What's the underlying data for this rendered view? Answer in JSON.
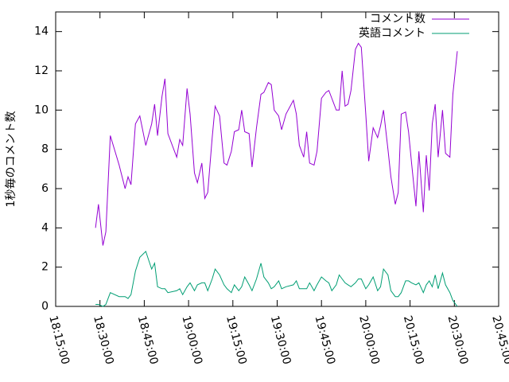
{
  "chart_data": {
    "type": "line",
    "y_label": "1秒毎のコメント数",
    "x": [
      "18:28:30",
      "18:29:30",
      "18:31:00",
      "18:32:00",
      "18:33:30",
      "18:36:30",
      "18:38:30",
      "18:39:30",
      "18:40:30",
      "18:42:00",
      "18:43:30",
      "18:45:30",
      "18:47:30",
      "18:48:30",
      "18:49:30",
      "18:51:00",
      "18:52:00",
      "18:53:00",
      "18:56:00",
      "18:57:00",
      "18:58:00",
      "18:59:30",
      "19:00:30",
      "19:02:00",
      "19:03:00",
      "19:04:30",
      "19:05:30",
      "19:06:30",
      "19:08:00",
      "19:09:00",
      "19:10:30",
      "19:12:00",
      "19:13:00",
      "19:14:30",
      "19:15:30",
      "19:17:00",
      "19:18:00",
      "19:19:00",
      "19:20:30",
      "19:21:30",
      "19:23:00",
      "19:24:30",
      "19:25:30",
      "19:27:00",
      "19:28:00",
      "19:29:00",
      "19:30:30",
      "19:31:30",
      "19:33:00",
      "19:35:30",
      "19:36:30",
      "19:37:30",
      "19:39:00",
      "19:40:00",
      "19:41:00",
      "19:42:30",
      "19:43:30",
      "19:45:00",
      "19:46:30",
      "19:47:30",
      "19:48:30",
      "19:50:00",
      "19:51:00",
      "19:52:00",
      "19:53:00",
      "19:54:00",
      "19:55:00",
      "19:56:30",
      "19:57:30",
      "19:58:30",
      "20:00:00",
      "20:01:00",
      "20:02:30",
      "20:04:00",
      "20:05:00",
      "20:06:00",
      "20:07:30",
      "20:08:30",
      "20:10:00",
      "20:11:00",
      "20:12:00",
      "20:13:30",
      "20:14:30",
      "20:15:30",
      "20:17:00",
      "20:18:00",
      "20:19:30",
      "20:20:30",
      "20:21:30",
      "20:22:30",
      "20:23:30",
      "20:24:30",
      "20:26:00",
      "20:27:00",
      "20:28:30",
      "20:29:30",
      "20:31:00"
    ],
    "series": [
      {
        "name": "コメント数",
        "color": "#9400d3",
        "values": [
          4.0,
          5.2,
          3.1,
          3.8,
          8.7,
          7.2,
          6.0,
          6.6,
          6.2,
          9.3,
          9.7,
          8.2,
          9.3,
          10.3,
          8.7,
          10.7,
          11.6,
          8.8,
          7.6,
          8.5,
          8.2,
          11.1,
          9.8,
          6.8,
          6.3,
          7.3,
          5.5,
          5.8,
          8.6,
          10.2,
          9.7,
          7.3,
          7.2,
          7.9,
          8.9,
          9.0,
          10.0,
          8.9,
          8.8,
          7.1,
          9.1,
          10.8,
          10.9,
          11.4,
          11.3,
          10.0,
          9.7,
          9.0,
          9.8,
          10.5,
          9.8,
          8.2,
          7.6,
          8.9,
          7.3,
          7.2,
          7.9,
          10.6,
          10.9,
          11.0,
          10.6,
          10.0,
          10.0,
          12.0,
          10.2,
          10.3,
          11.0,
          13.1,
          13.4,
          13.2,
          9.8,
          7.4,
          9.1,
          8.6,
          9.2,
          10.0,
          8.0,
          6.6,
          5.2,
          5.8,
          9.8,
          9.9,
          8.9,
          7.3,
          5.1,
          7.9,
          4.8,
          7.7,
          5.9,
          9.3,
          10.3,
          7.6,
          10.0,
          7.8,
          7.6,
          10.8,
          13.0
        ]
      },
      {
        "name": "英語コメント",
        "color": "#009e73",
        "values": [
          0.1,
          0.1,
          0.0,
          0.1,
          0.7,
          0.5,
          0.5,
          0.4,
          0.6,
          1.8,
          2.5,
          2.8,
          1.9,
          2.2,
          1.0,
          0.9,
          0.9,
          0.7,
          0.8,
          0.9,
          0.6,
          1.0,
          1.2,
          0.8,
          1.1,
          1.2,
          1.2,
          0.8,
          1.4,
          1.9,
          1.6,
          1.1,
          0.9,
          0.7,
          1.1,
          0.8,
          1.0,
          1.5,
          1.1,
          0.8,
          1.4,
          2.2,
          1.5,
          1.2,
          0.9,
          1.0,
          1.3,
          0.9,
          1.0,
          1.1,
          1.3,
          0.9,
          0.9,
          0.9,
          1.2,
          0.8,
          1.1,
          1.5,
          1.3,
          1.2,
          0.8,
          1.1,
          1.6,
          1.4,
          1.2,
          1.1,
          1.0,
          1.2,
          1.4,
          1.4,
          0.9,
          1.1,
          1.5,
          0.8,
          1.0,
          1.9,
          1.6,
          0.8,
          0.5,
          0.5,
          0.7,
          1.3,
          1.3,
          1.2,
          1.1,
          1.2,
          0.7,
          1.1,
          1.3,
          1.0,
          1.6,
          0.9,
          1.7,
          1.1,
          0.7,
          0.3,
          0.0
        ]
      }
    ],
    "xlim": [
      "18:15:00",
      "20:45:00"
    ],
    "xticks": [
      "18:15:00",
      "18:30:00",
      "18:45:00",
      "19:00:00",
      "19:15:00",
      "19:30:00",
      "19:45:00",
      "20:00:00",
      "20:15:00",
      "20:30:00",
      "20:45:00"
    ],
    "ylim": [
      0,
      15
    ],
    "yticks": [
      0,
      2,
      4,
      6,
      8,
      10,
      12,
      14
    ],
    "legend": "top-right"
  }
}
